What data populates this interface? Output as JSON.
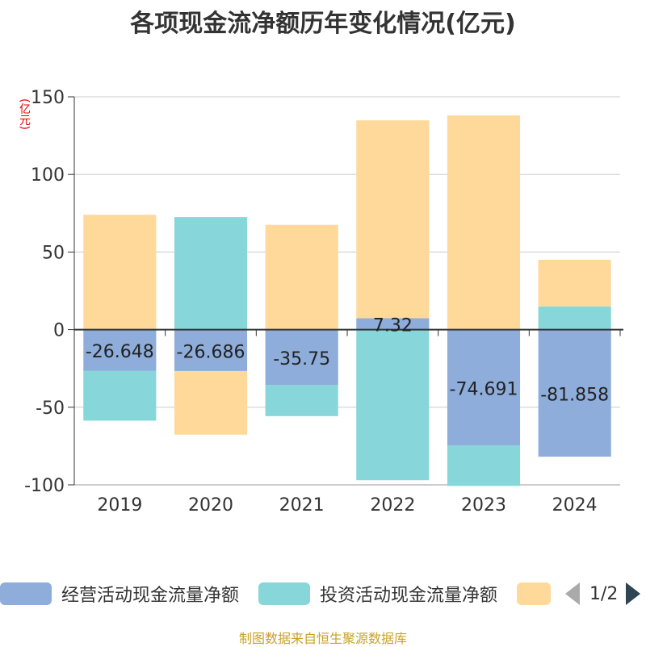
{
  "title": "各项现金流净额历年变化情况(亿元)",
  "unit_label": "(亿元)",
  "legend": {
    "items": [
      {
        "label": "经营活动现金流量净额",
        "color": "#8eadda"
      },
      {
        "label": "投资活动现金流量净额",
        "color": "#87d6da"
      },
      {
        "label": "",
        "color": "#fed99a"
      }
    ],
    "page_text": "1/2"
  },
  "source": "制图数据来自恒生聚源数据库",
  "chart_data": {
    "type": "bar",
    "stacked": true,
    "categories": [
      "2019",
      "2020",
      "2021",
      "2022",
      "2023",
      "2024"
    ],
    "ylim": [
      -100,
      150
    ],
    "yticks": [
      -100,
      -50,
      0,
      50,
      100,
      150
    ],
    "grid": true,
    "series": [
      {
        "name": "经营活动现金流量净额",
        "color": "#8eadda",
        "values": [
          -26.648,
          -26.686,
          -35.75,
          7.32,
          -74.691,
          -81.858
        ],
        "labels": [
          "-26.648",
          "-26.686",
          "-35.75",
          "7.32",
          "-74.691",
          "-81.858"
        ]
      },
      {
        "name": "投资活动现金流量净额",
        "color": "#87d6da",
        "values": [
          -32,
          72.5,
          -20,
          -97,
          -26,
          15
        ]
      },
      {
        "color": "#fed99a",
        "values": [
          74,
          -41,
          67.5,
          127.5,
          138,
          30
        ]
      }
    ]
  }
}
